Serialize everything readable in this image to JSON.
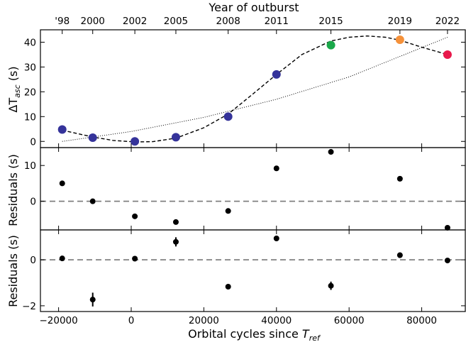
{
  "chart_data": [
    {
      "type": "scatter",
      "top_axis": {
        "label": "Year of outburst",
        "ticks": [
          {
            "x": -19000,
            "label": "'98"
          },
          {
            "x": -10600,
            "label": "2000"
          },
          {
            "x": 1000,
            "label": "2002"
          },
          {
            "x": 12300,
            "label": "2005"
          },
          {
            "x": 26700,
            "label": "2008"
          },
          {
            "x": 40000,
            "label": "2011"
          },
          {
            "x": 55000,
            "label": "2015"
          },
          {
            "x": 74000,
            "label": "2019"
          },
          {
            "x": 87100,
            "label": "2022"
          }
        ]
      },
      "ylabel_main": "ΔT",
      "ylabel_sub": "asc",
      "ylabel_unit": " (s)",
      "ylim": [
        -2.5,
        45
      ],
      "yticks": [
        0,
        10,
        20,
        30,
        40
      ],
      "points": [
        {
          "x": -19000,
          "y": 4.8,
          "color": "#35339a"
        },
        {
          "x": -10600,
          "y": 1.5,
          "color": "#35339a"
        },
        {
          "x": 1000,
          "y": 0.0,
          "color": "#35339a"
        },
        {
          "x": 12300,
          "y": 1.7,
          "color": "#35339a"
        },
        {
          "x": 26700,
          "y": 10.0,
          "color": "#35339a"
        },
        {
          "x": 40000,
          "y": 27.0,
          "color": "#35339a"
        },
        {
          "x": 55000,
          "y": 38.8,
          "color": "#1aa84a"
        },
        {
          "x": 74000,
          "y": 41.0,
          "color": "#f5913a"
        },
        {
          "x": 87100,
          "y": 35.0,
          "color": "#e8194b"
        }
      ],
      "curves": {
        "dashed_model": {
          "x": [
            -19000,
            -10600,
            -5000,
            1000,
            6000,
            12300,
            20000,
            26700,
            33000,
            40000,
            47000,
            55000,
            60000,
            65000,
            70000,
            74000,
            80000,
            87100
          ],
          "y": [
            4.5,
            1.8,
            0.4,
            -0.2,
            -0.1,
            1.3,
            5.5,
            11.0,
            18.5,
            27.0,
            35.0,
            40.5,
            42.0,
            42.5,
            42.0,
            40.8,
            38.0,
            35.0
          ]
        },
        "dotted_model": {
          "x": [
            -19000,
            0,
            20000,
            40000,
            60000,
            87100
          ],
          "y": [
            0.0,
            4.0,
            9.7,
            17.0,
            26.0,
            42.0
          ]
        }
      }
    },
    {
      "type": "scatter",
      "ylabel": "Residuals (s)",
      "ylim": [
        -8,
        15
      ],
      "yticks": [
        0,
        10
      ],
      "zero_line": "dashed",
      "points": [
        {
          "x": -19000,
          "y": 5.0
        },
        {
          "x": -10600,
          "y": 0.0
        },
        {
          "x": 1000,
          "y": -4.2
        },
        {
          "x": 12300,
          "y": -5.8
        },
        {
          "x": 26700,
          "y": -2.7
        },
        {
          "x": 40000,
          "y": 9.2
        },
        {
          "x": 55000,
          "y": 13.8
        },
        {
          "x": 74000,
          "y": 6.3
        },
        {
          "x": 87100,
          "y": -7.4
        }
      ]
    },
    {
      "type": "scatter",
      "ylabel": "Residuals (s)",
      "ylim": [
        -2.25,
        1.3
      ],
      "yticks": [
        -2,
        0
      ],
      "zero_line": "dashed",
      "points": [
        {
          "x": -19000,
          "y": 0.06,
          "err": 0.06
        },
        {
          "x": -10600,
          "y": -1.73,
          "err": 0.3
        },
        {
          "x": 1000,
          "y": 0.05,
          "err": 0.06
        },
        {
          "x": 12300,
          "y": 0.78,
          "err": 0.2
        },
        {
          "x": 26700,
          "y": -1.17,
          "err": 0.1
        },
        {
          "x": 40000,
          "y": 0.93,
          "err": 0.12
        },
        {
          "x": 55000,
          "y": -1.13,
          "err": 0.18
        },
        {
          "x": 74000,
          "y": 0.2,
          "err": 0.12
        },
        {
          "x": 87100,
          "y": -0.03,
          "err": 0.1
        }
      ],
      "xlabel_main": "Orbital cycles since ",
      "xlabel_var": "T",
      "xlabel_sub": "ref",
      "xlim": [
        -25000,
        92000
      ],
      "xticks": [
        -20000,
        0,
        20000,
        40000,
        60000,
        80000
      ],
      "xtick_labels": [
        "−20000",
        "0",
        "20000",
        "40000",
        "60000",
        "80000"
      ]
    }
  ]
}
